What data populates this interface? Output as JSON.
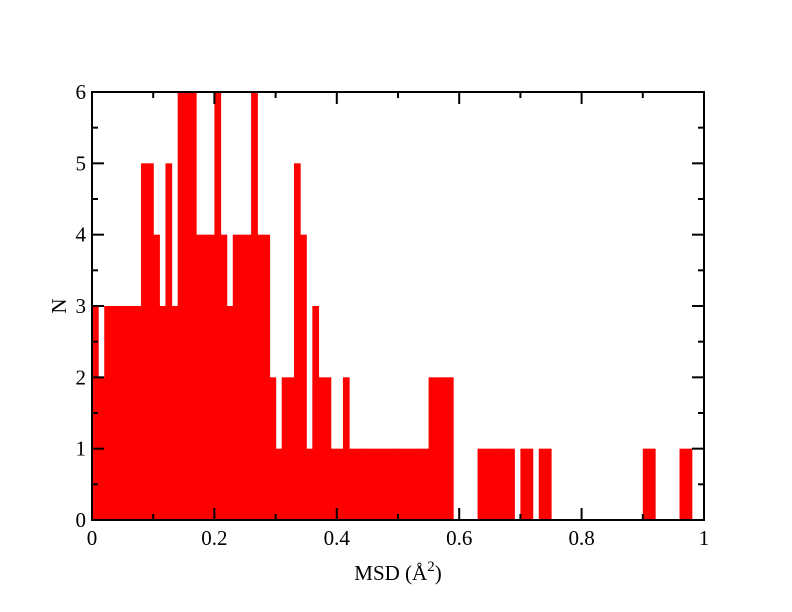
{
  "chart_data": {
    "type": "bar",
    "xlabel": "MSD (Å",
    "xlabel_sup": "2",
    "xlabel_close": ")",
    "ylabel": "N",
    "xlim": [
      0,
      1
    ],
    "ylim": [
      0,
      6
    ],
    "x_ticks": [
      "0",
      "0.2",
      "0.4",
      "0.6",
      "0.8",
      "1"
    ],
    "y_ticks": [
      "0",
      "1",
      "2",
      "3",
      "4",
      "5",
      "6"
    ],
    "grid": false,
    "bar_color": "#ff0000",
    "bin_width": 0.01,
    "bins": [
      {
        "x": 0.0,
        "n": 3
      },
      {
        "x": 0.01,
        "n": 2
      },
      {
        "x": 0.02,
        "n": 3
      },
      {
        "x": 0.03,
        "n": 3
      },
      {
        "x": 0.04,
        "n": 3
      },
      {
        "x": 0.05,
        "n": 3
      },
      {
        "x": 0.06,
        "n": 3
      },
      {
        "x": 0.07,
        "n": 3
      },
      {
        "x": 0.08,
        "n": 5
      },
      {
        "x": 0.09,
        "n": 5
      },
      {
        "x": 0.1,
        "n": 4
      },
      {
        "x": 0.11,
        "n": 3
      },
      {
        "x": 0.12,
        "n": 5
      },
      {
        "x": 0.13,
        "n": 3
      },
      {
        "x": 0.14,
        "n": 6
      },
      {
        "x": 0.15,
        "n": 6
      },
      {
        "x": 0.16,
        "n": 6
      },
      {
        "x": 0.17,
        "n": 4
      },
      {
        "x": 0.18,
        "n": 4
      },
      {
        "x": 0.19,
        "n": 4
      },
      {
        "x": 0.2,
        "n": 6
      },
      {
        "x": 0.21,
        "n": 4
      },
      {
        "x": 0.22,
        "n": 3
      },
      {
        "x": 0.23,
        "n": 4
      },
      {
        "x": 0.24,
        "n": 4
      },
      {
        "x": 0.25,
        "n": 4
      },
      {
        "x": 0.26,
        "n": 6
      },
      {
        "x": 0.27,
        "n": 4
      },
      {
        "x": 0.28,
        "n": 4
      },
      {
        "x": 0.29,
        "n": 2
      },
      {
        "x": 0.3,
        "n": 1
      },
      {
        "x": 0.31,
        "n": 2
      },
      {
        "x": 0.32,
        "n": 2
      },
      {
        "x": 0.33,
        "n": 5
      },
      {
        "x": 0.34,
        "n": 4
      },
      {
        "x": 0.35,
        "n": 1
      },
      {
        "x": 0.36,
        "n": 3
      },
      {
        "x": 0.37,
        "n": 2
      },
      {
        "x": 0.38,
        "n": 2
      },
      {
        "x": 0.39,
        "n": 1
      },
      {
        "x": 0.4,
        "n": 1
      },
      {
        "x": 0.41,
        "n": 2
      },
      {
        "x": 0.42,
        "n": 1
      },
      {
        "x": 0.43,
        "n": 1
      },
      {
        "x": 0.44,
        "n": 1
      },
      {
        "x": 0.45,
        "n": 1
      },
      {
        "x": 0.46,
        "n": 1
      },
      {
        "x": 0.47,
        "n": 1
      },
      {
        "x": 0.48,
        "n": 1
      },
      {
        "x": 0.49,
        "n": 1
      },
      {
        "x": 0.5,
        "n": 1
      },
      {
        "x": 0.51,
        "n": 1
      },
      {
        "x": 0.52,
        "n": 1
      },
      {
        "x": 0.53,
        "n": 1
      },
      {
        "x": 0.54,
        "n": 1
      },
      {
        "x": 0.55,
        "n": 2
      },
      {
        "x": 0.56,
        "n": 2
      },
      {
        "x": 0.57,
        "n": 2
      },
      {
        "x": 0.58,
        "n": 2
      },
      {
        "x": 0.63,
        "n": 1
      },
      {
        "x": 0.64,
        "n": 1
      },
      {
        "x": 0.65,
        "n": 1
      },
      {
        "x": 0.66,
        "n": 1
      },
      {
        "x": 0.67,
        "n": 1
      },
      {
        "x": 0.68,
        "n": 1
      },
      {
        "x": 0.7,
        "n": 1
      },
      {
        "x": 0.71,
        "n": 1
      },
      {
        "x": 0.73,
        "n": 1
      },
      {
        "x": 0.74,
        "n": 1
      },
      {
        "x": 0.9,
        "n": 1
      },
      {
        "x": 0.91,
        "n": 1
      },
      {
        "x": 0.96,
        "n": 1
      },
      {
        "x": 0.97,
        "n": 1
      }
    ]
  }
}
